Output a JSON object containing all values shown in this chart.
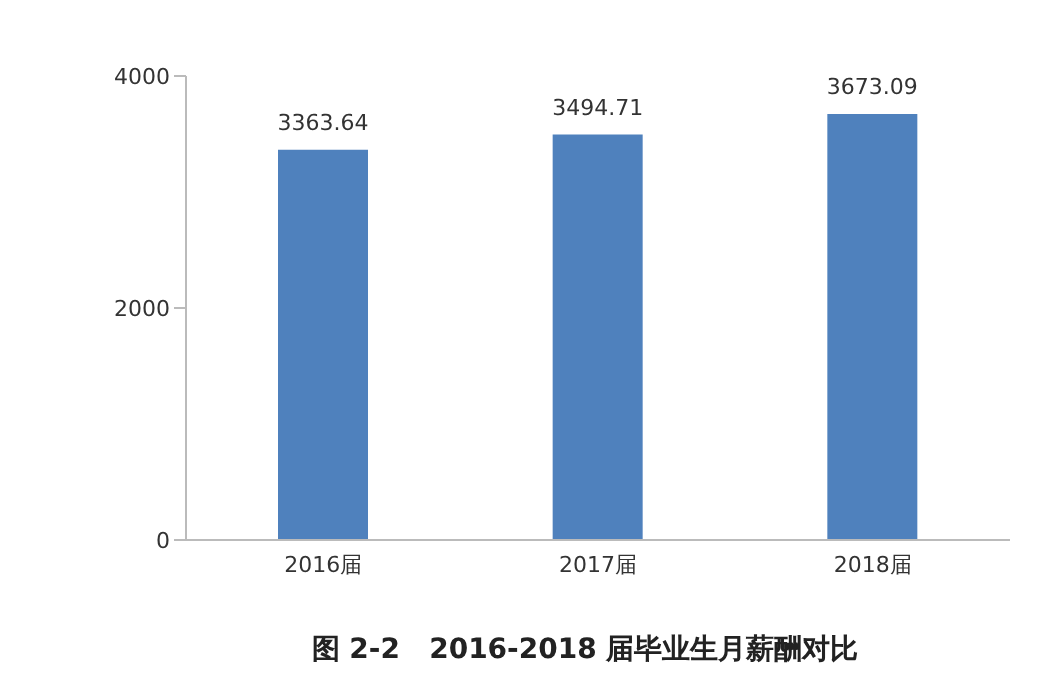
{
  "chart_data": {
    "type": "bar",
    "title": "图 2-2   2016-2018 届毕业生月薪酬对比",
    "categories": [
      "2016届",
      "2017届",
      "2018届"
    ],
    "values": [
      3363.64,
      3494.71,
      3673.09
    ],
    "color": "#4f81bd",
    "ylim": [
      0,
      4000
    ],
    "yticks": [
      0,
      2000,
      4000
    ],
    "grid": false,
    "data_labels": true
  }
}
